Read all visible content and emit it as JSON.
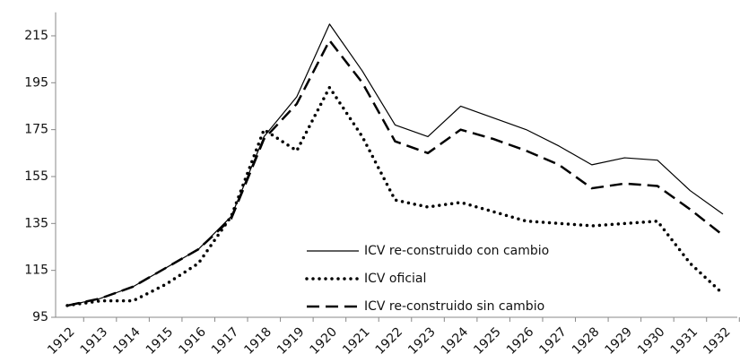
{
  "chart_data": {
    "type": "line",
    "categories": [
      "1912",
      "1913",
      "1914",
      "1915",
      "1916",
      "1917",
      "1918",
      "1919",
      "1920",
      "1921",
      "1922",
      "1923",
      "1924",
      "1925",
      "1926",
      "1927",
      "1928",
      "1929",
      "1930",
      "1931",
      "1932"
    ],
    "series": [
      {
        "name": "ICV re-construido con cambio",
        "color": "#000000",
        "dash": "solid",
        "values": [
          100,
          103,
          108,
          116,
          124,
          138,
          172,
          189,
          220,
          200,
          177,
          172,
          185,
          180,
          175,
          168,
          160,
          163,
          162,
          149,
          139
        ]
      },
      {
        "name": "ICV oficial",
        "color": "#000000",
        "dash": "dotted",
        "values": [
          100,
          102,
          102,
          109,
          118,
          138,
          175,
          166,
          193,
          172,
          145,
          142,
          144,
          140,
          136,
          135,
          134,
          135,
          136,
          118,
          105
        ]
      },
      {
        "name": "ICV re-construido sin cambio",
        "color": "#000000",
        "dash": "dashed",
        "values": [
          100,
          103,
          108,
          116,
          124,
          137,
          171,
          186,
          213,
          195,
          170,
          165,
          175,
          171,
          166,
          160,
          150,
          152,
          151,
          141,
          130
        ]
      }
    ],
    "ylim": [
      95,
      225
    ],
    "yticks": [
      95,
      115,
      135,
      155,
      175,
      195,
      215
    ],
    "grid": false,
    "legend": "bottom-center"
  }
}
